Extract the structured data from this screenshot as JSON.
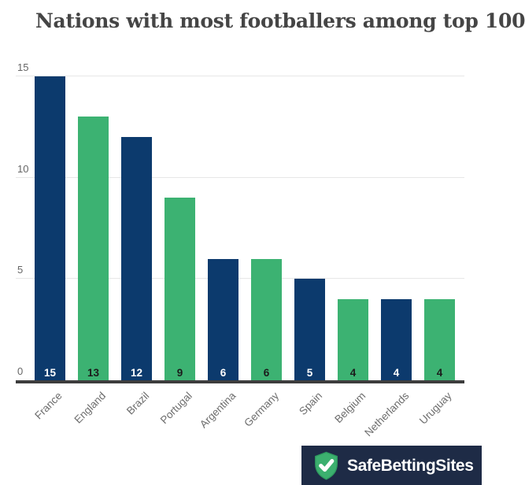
{
  "title": "Nations with most footballers among top 100",
  "chart_data": {
    "type": "bar",
    "categories": [
      "France",
      "England",
      "Brazil",
      "Portugal",
      "Argentina",
      "Germany",
      "Spain",
      "Belgium",
      "Netherlands",
      "Uruguay"
    ],
    "values": [
      15,
      13,
      12,
      9,
      6,
      6,
      5,
      4,
      4,
      4
    ],
    "title": "Nations with most footballers among top 100",
    "xlabel": "",
    "ylabel": "",
    "ylim": [
      0,
      15
    ],
    "yticks": [
      0,
      5,
      10,
      15
    ],
    "grid": true,
    "legend": "none",
    "value_labels_position": "inside-bottom",
    "bar_color_odd_columns": "#0c3a6d",
    "bar_color_even_columns": "#3cb272",
    "value_label_color_on_navy": "#ffffff",
    "value_label_color_on_green": "#1b1b1b"
  },
  "colors": {
    "navy": "#0c3a6d",
    "green": "#3cb272",
    "axis": "#3d3d3d",
    "gridline": "#e7e7e7",
    "tick_label": "#666666",
    "category_label": "#6d6d6d",
    "title": "#454545",
    "background": "#ffffff",
    "logo_background": "#1e2b46",
    "logo_shield_green": "#3cb06f",
    "logo_shield_border": "#2e9b5f",
    "logo_check": "#ffffff"
  },
  "branding": {
    "logo_text": "SafeBettingSites",
    "logo_icon": "shield-check-icon"
  }
}
